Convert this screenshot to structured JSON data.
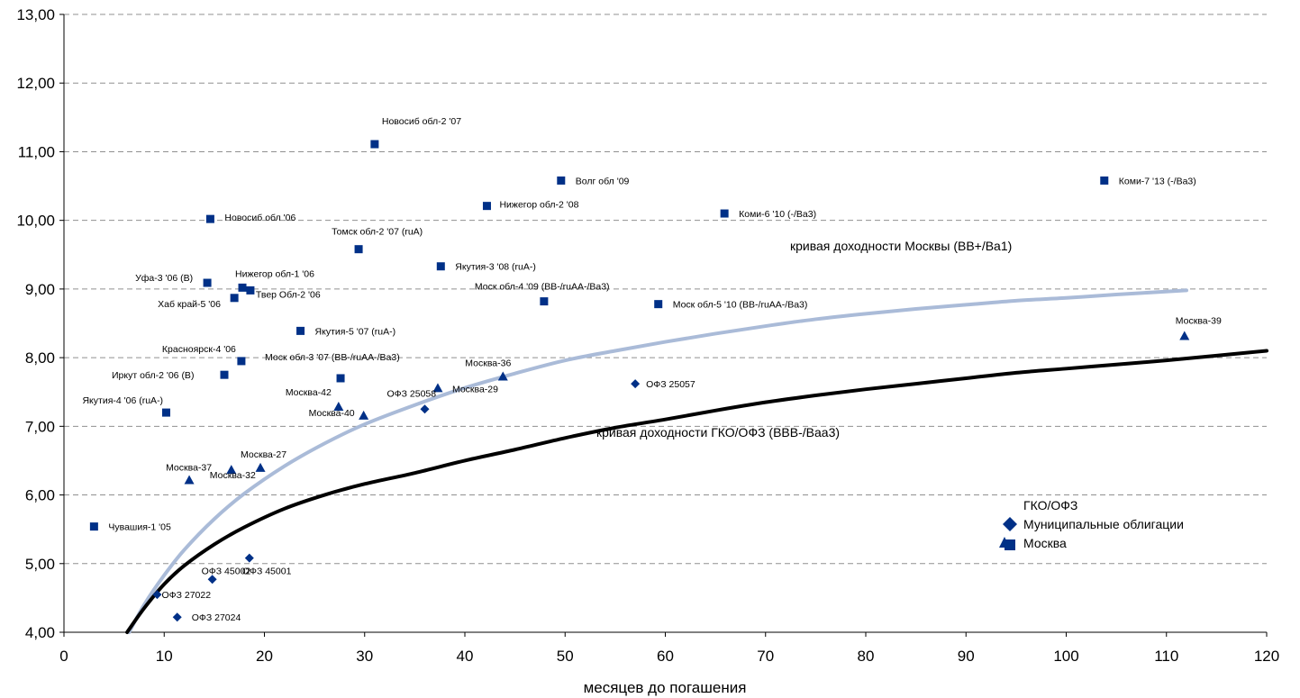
{
  "chart_data": {
    "type": "scatter",
    "xlabel": "месяцев до погашения",
    "xlim": [
      0,
      120
    ],
    "ylim": [
      4,
      13
    ],
    "x_ticks": [
      "0",
      "10",
      "20",
      "30",
      "40",
      "50",
      "60",
      "70",
      "80",
      "90",
      "100",
      "110",
      "120"
    ],
    "y_ticks": [
      "4,00",
      "5,00",
      "6,00",
      "7,00",
      "8,00",
      "9,00",
      "10,00",
      "11,00",
      "12,00",
      "13,00"
    ],
    "grid": "horizontal dashed",
    "colors": {
      "points": "#003087",
      "moscow_curve": "#aabbd8",
      "gko_curve": "#000000"
    },
    "curves": [
      {
        "label": "кривая доходности Москвы (BB+/Ba1)",
        "x": [
          6.5,
          8,
          10,
          12,
          15,
          18,
          22,
          26,
          30,
          35,
          40,
          45,
          50,
          55,
          60,
          65,
          70,
          75,
          80,
          85,
          90,
          95,
          100,
          105,
          112
        ],
        "y": [
          4.0,
          4.4,
          4.83,
          5.2,
          5.65,
          6.02,
          6.42,
          6.75,
          7.03,
          7.31,
          7.56,
          7.77,
          7.96,
          8.1,
          8.23,
          8.35,
          8.46,
          8.56,
          8.64,
          8.71,
          8.77,
          8.83,
          8.87,
          8.92,
          8.98
        ]
      },
      {
        "label": "кривая доходности ГКО/ОФЗ (BBB-/Baa3)",
        "x": [
          6.3,
          8,
          10,
          12,
          15,
          18,
          22,
          26,
          30,
          35,
          40,
          45,
          50,
          55,
          60,
          65,
          70,
          75,
          80,
          85,
          90,
          95,
          100,
          105,
          110,
          115,
          120
        ],
        "y": [
          4.0,
          4.35,
          4.7,
          4.97,
          5.28,
          5.53,
          5.8,
          6.0,
          6.16,
          6.32,
          6.5,
          6.66,
          6.83,
          6.98,
          7.1,
          7.23,
          7.35,
          7.45,
          7.54,
          7.62,
          7.7,
          7.78,
          7.84,
          7.9,
          7.96,
          8.03,
          8.1
        ]
      }
    ],
    "series": [
      {
        "name": "ГКО/ОФЗ",
        "marker": "diamond",
        "points": [
          {
            "label": "ОФЗ 27022",
            "x": 9.3,
            "y": 4.55
          },
          {
            "label": "ОФЗ 27024",
            "x": 11.3,
            "y": 4.22
          },
          {
            "label": "ОФЗ 45002",
            "x": 14.8,
            "y": 4.77
          },
          {
            "label": "ОФЗ 45001",
            "x": 18.5,
            "y": 5.08
          },
          {
            "label": "ОФЗ 25058",
            "x": 36.0,
            "y": 7.25
          },
          {
            "label": "ОФЗ 25057",
            "x": 57.0,
            "y": 7.62
          }
        ]
      },
      {
        "name": "Муниципальные облигации",
        "marker": "square",
        "points": [
          {
            "label": "Новосиб обл-2 '07",
            "x": 31.0,
            "y": 11.11
          },
          {
            "label": "Волг обл '09",
            "x": 49.6,
            "y": 10.58
          },
          {
            "label": "Коми-7 '13 (-/Ba3)",
            "x": 103.8,
            "y": 10.58
          },
          {
            "label": "Нижегор обл-2 '08",
            "x": 42.2,
            "y": 10.21
          },
          {
            "label": "Коми-6 '10 (-/Ba3)",
            "x": 65.9,
            "y": 10.1
          },
          {
            "label": "Новосиб обл '06",
            "x": 14.6,
            "y": 10.02
          },
          {
            "label": "Томск обл-2 '07 (ruA)",
            "x": 29.4,
            "y": 9.58
          },
          {
            "label": "Якутия-3 '08 (ruA-)",
            "x": 37.6,
            "y": 9.33
          },
          {
            "label": "Уфа-3 '06 (B)",
            "x": 14.3,
            "y": 9.09
          },
          {
            "label": "Нижегор обл-1 '06",
            "x": 17.8,
            "y": 9.02
          },
          {
            "label": "Твер Обл-2 '06",
            "x": 18.6,
            "y": 8.98
          },
          {
            "label": "Хаб край-5 '06",
            "x": 17.0,
            "y": 8.87
          },
          {
            "label": "Моск обл-4 '09 (BB-/ruAA-/Ba3)",
            "x": 47.9,
            "y": 8.82
          },
          {
            "label": "Моск обл-5 '10 (BB-/ruAA-/Ba3)",
            "x": 59.3,
            "y": 8.78
          },
          {
            "label": "Якутия-5 '07 (ruA-)",
            "x": 23.6,
            "y": 8.39
          },
          {
            "label": "Красноярск-4 '06",
            "x": 17.7,
            "y": 7.95
          },
          {
            "label": "Моск обл-3 '07 (BB-/ruAA-/Ba3)",
            "x": 27.6,
            "y": 7.7
          },
          {
            "label": "Иркут обл-2 '06 (B)",
            "x": 16.0,
            "y": 7.75
          },
          {
            "label": "Якутия-4 '06 (ruA-)",
            "x": 10.2,
            "y": 7.2
          },
          {
            "label": "Чувашия-1 '05",
            "x": 3.0,
            "y": 5.54
          }
        ]
      },
      {
        "name": "Москва",
        "marker": "triangle",
        "points": [
          {
            "label": "Москва-39",
            "x": 111.8,
            "y": 8.31
          },
          {
            "label": "Москва-36",
            "x": 43.8,
            "y": 7.72
          },
          {
            "label": "Москва-29",
            "x": 37.3,
            "y": 7.55
          },
          {
            "label": "Москва-42",
            "x": 27.4,
            "y": 7.28
          },
          {
            "label": "Москва-40",
            "x": 29.9,
            "y": 7.15
          },
          {
            "label": "Москва-37",
            "x": 12.5,
            "y": 6.21
          },
          {
            "label": "Москва-32",
            "x": 16.7,
            "y": 6.36
          },
          {
            "label": "Москва-27",
            "x": 19.6,
            "y": 6.39
          }
        ]
      }
    ],
    "legend": {
      "placement": "bottom-right",
      "entries": [
        "ГКО/ОФЗ",
        "Муниципальные облигации",
        "Москва"
      ]
    }
  }
}
